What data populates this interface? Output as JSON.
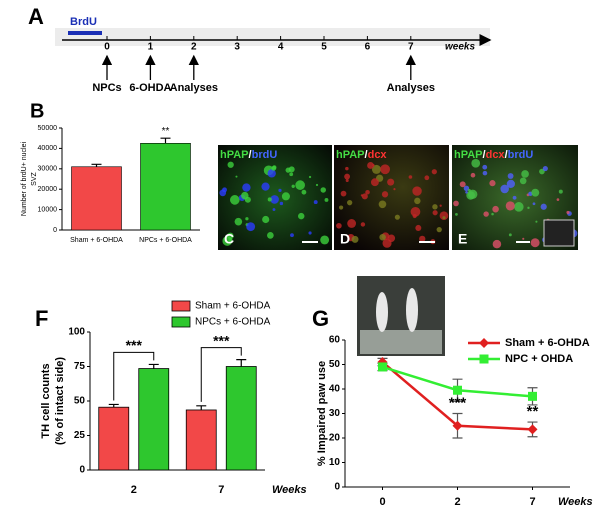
{
  "timeline": {
    "label": "A",
    "treatment": "BrdU",
    "ticks": [
      0,
      1,
      2,
      3,
      4,
      5,
      6,
      7
    ],
    "unit": "weeks",
    "events": [
      {
        "text": "NPCs",
        "week": 0
      },
      {
        "text": "6-OHDA",
        "week": 1
      },
      {
        "text": "Analyses",
        "week": 2
      },
      {
        "text": "Analyses",
        "week": 7
      }
    ]
  },
  "images": [
    {
      "label": "C",
      "title": [
        {
          "text": "hPAP",
          "color": "#44dd44"
        },
        {
          "text": "/",
          "color": "#ffffff"
        },
        {
          "text": "brdU",
          "color": "#4466ff"
        }
      ]
    },
    {
      "label": "D",
      "title": [
        {
          "text": "hPAP",
          "color": "#44dd44"
        },
        {
          "text": "/",
          "color": "#ffffff"
        },
        {
          "text": "dcx",
          "color": "#ff3333"
        }
      ]
    },
    {
      "label": "E",
      "title": [
        {
          "text": "hPAP",
          "color": "#44dd44"
        },
        {
          "text": "/",
          "color": "#ffffff"
        },
        {
          "text": "dcx",
          "color": "#ff3333"
        },
        {
          "text": "/",
          "color": "#ffffff"
        },
        {
          "text": "brdU",
          "color": "#4466ff"
        }
      ]
    }
  ],
  "chart_data": [
    {
      "type": "bar",
      "label": "B",
      "ylabel": "Number of brdU+ nuclei",
      "ylabel2": "SVZ",
      "categories": [
        "Sham + 6-OHDA",
        "NPCs + 6-OHDA"
      ],
      "values": [
        31000,
        42500
      ],
      "errors": [
        1200,
        2500
      ],
      "colors": [
        "#f24848",
        "#2ec72e"
      ],
      "ylim": [
        0,
        50000
      ],
      "yticks": [
        0,
        10000,
        20000,
        30000,
        40000,
        50000
      ],
      "annotations": [
        {
          "text": "**",
          "category": 1
        }
      ]
    },
    {
      "type": "bar",
      "label": "F",
      "ylabel": "TH cell counts",
      "ylabel2": "(% of intact side)",
      "xlabel": "Weeks",
      "categories": [
        "2",
        "7"
      ],
      "series": [
        {
          "name": "Sham + 6-OHDA",
          "color": "#f24848",
          "values": [
            45.5,
            43.5
          ],
          "errors": [
            2,
            3
          ]
        },
        {
          "name": "NPCs + 6-OHDA",
          "color": "#2ec72e",
          "values": [
            73.5,
            75
          ],
          "errors": [
            3,
            5
          ]
        }
      ],
      "ylim": [
        0,
        100
      ],
      "yticks": [
        0,
        25,
        50,
        75,
        100
      ],
      "annotations": [
        {
          "text": "***",
          "category": 0
        },
        {
          "text": "***",
          "category": 1
        }
      ]
    },
    {
      "type": "line",
      "label": "G",
      "ylabel": "% Impaired paw use",
      "xlabel": "Weeks",
      "categories": [
        "0",
        "2",
        "7"
      ],
      "series": [
        {
          "name": "Sham + 6-OHDA",
          "color": "#e02020",
          "values": [
            51,
            25,
            23.5
          ],
          "errors": [
            1.5,
            5,
            3
          ]
        },
        {
          "name": "NPC + OHDA",
          "color": "#33ee33",
          "values": [
            49,
            39.5,
            37
          ],
          "errors": [
            1.5,
            4.5,
            3.5
          ]
        }
      ],
      "ylim": [
        0,
        60
      ],
      "yticks": [
        0,
        10,
        20,
        30,
        40,
        50,
        60
      ],
      "annotations": [
        {
          "text": "***",
          "category": 1
        },
        {
          "text": "**",
          "category": 2
        }
      ]
    }
  ]
}
